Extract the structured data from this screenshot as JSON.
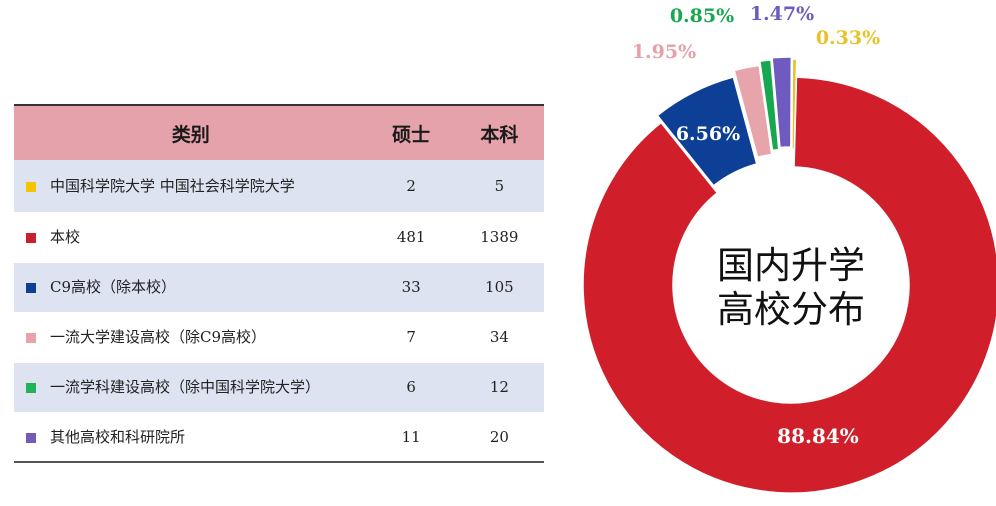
{
  "table": {
    "headers": [
      "类别",
      "硕士",
      "本科"
    ],
    "rows": [
      {
        "category": "中国科学院大学  中国社会科学院大学",
        "master": "2",
        "bachelor": "5",
        "color": "#f5c400"
      },
      {
        "category": "本校",
        "master": "481",
        "bachelor": "1389",
        "color": "#c8202c"
      },
      {
        "category": "C9高校（除本校）",
        "master": "33",
        "bachelor": "105",
        "color": "#0c3f95"
      },
      {
        "category": "一流大学建设高校（除C9高校）",
        "master": "7",
        "bachelor": "34",
        "color": "#e8a2a8"
      },
      {
        "category": "一流学科建设高校（除中国科学院大学）",
        "master": "6",
        "bachelor": "12",
        "color": "#1fb35a"
      },
      {
        "category": "其他高校和科研院所",
        "master": "11",
        "bachelor": "20",
        "color": "#7559b6"
      }
    ]
  },
  "chart_data": {
    "type": "pie",
    "title": "国内升学高校分布",
    "title_lines": [
      "国内升学",
      "高校分布"
    ],
    "slices": [
      {
        "category": "本校",
        "value": 88.84,
        "label": "88.84%",
        "color": "#d01f2b"
      },
      {
        "category": "C9高校（除本校）",
        "value": 6.56,
        "label": "6.56%",
        "color": "#0d3f96"
      },
      {
        "category": "一流大学建设高校（除C9高校）",
        "value": 1.95,
        "label": "1.95%",
        "color": "#e7a4aa"
      },
      {
        "category": "一流学科建设高校（除中国科学院大学）",
        "value": 0.85,
        "label": "0.85%",
        "color": "#17a84f"
      },
      {
        "category": "其他高校和科研院所",
        "value": 1.47,
        "label": "1.47%",
        "color": "#6f5bbf"
      },
      {
        "category": "中国科学院大学  中国社会科学院大学",
        "value": 0.33,
        "label": "0.33%",
        "color": "#e8c229"
      }
    ]
  }
}
